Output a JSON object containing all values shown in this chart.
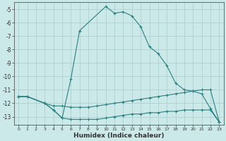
{
  "xlabel": "Humidex (Indice chaleur)",
  "bg_color": "#cce9e9",
  "grid_color": "#aacccc",
  "line_color": "#2d7f7f",
  "spine_color": "#555555",
  "xlim": [
    -0.5,
    23.5
  ],
  "ylim": [
    -13.6,
    -4.5
  ],
  "yticks": [
    -13,
    -12,
    -11,
    -10,
    -9,
    -8,
    -7,
    -6,
    -5
  ],
  "xticks": [
    0,
    1,
    2,
    3,
    4,
    5,
    6,
    7,
    8,
    9,
    10,
    11,
    12,
    13,
    14,
    15,
    16,
    17,
    18,
    19,
    20,
    21,
    22,
    23
  ],
  "line1_x": [
    0,
    1,
    3,
    4,
    5,
    6,
    7,
    10,
    11,
    12,
    13,
    14,
    15,
    16,
    17,
    18,
    19,
    20,
    21,
    22,
    23
  ],
  "line1_y": [
    -11.5,
    -11.5,
    -12.0,
    -12.5,
    -13.1,
    -10.2,
    -6.6,
    -4.8,
    -5.3,
    -5.2,
    -5.5,
    -6.3,
    -7.8,
    -8.3,
    -9.2,
    -10.5,
    -11.0,
    -11.1,
    -11.3,
    -12.4,
    -13.4
  ],
  "line2_x": [
    0,
    1,
    3,
    4,
    5,
    6,
    7,
    8,
    9,
    10,
    11,
    12,
    13,
    14,
    15,
    16,
    17,
    18,
    19,
    20,
    21,
    22,
    23
  ],
  "line2_y": [
    -11.5,
    -11.5,
    -12.0,
    -12.2,
    -12.2,
    -12.3,
    -12.3,
    -12.3,
    -12.2,
    -12.1,
    -12.0,
    -11.9,
    -11.8,
    -11.7,
    -11.6,
    -11.5,
    -11.4,
    -11.3,
    -11.2,
    -11.1,
    -11.0,
    -11.0,
    -13.4
  ],
  "line3_x": [
    0,
    1,
    3,
    4,
    5,
    6,
    7,
    8,
    9,
    10,
    11,
    12,
    13,
    14,
    15,
    16,
    17,
    18,
    19,
    20,
    21,
    22,
    23
  ],
  "line3_y": [
    -11.5,
    -11.5,
    -12.0,
    -12.5,
    -13.1,
    -13.2,
    -13.2,
    -13.2,
    -13.2,
    -13.1,
    -13.0,
    -12.9,
    -12.8,
    -12.8,
    -12.7,
    -12.7,
    -12.6,
    -12.6,
    -12.5,
    -12.5,
    -12.5,
    -12.5,
    -13.4
  ]
}
